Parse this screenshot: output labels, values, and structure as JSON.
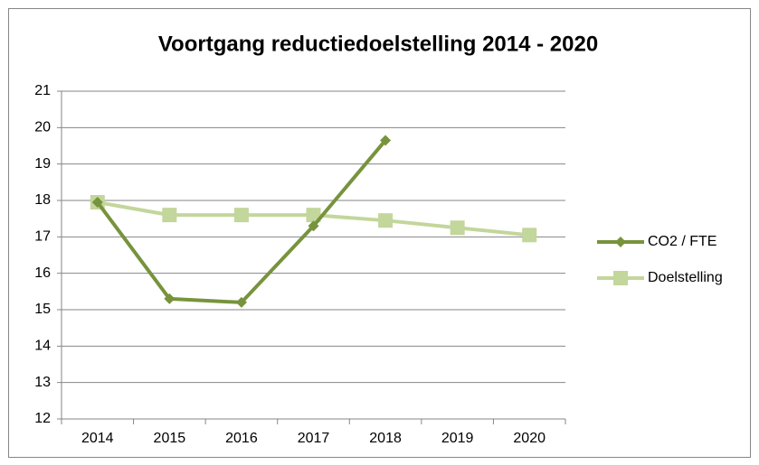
{
  "chart_data": {
    "type": "line",
    "title": "Voortgang reductiedoelstelling 2014 - 2020",
    "categories": [
      "2014",
      "2015",
      "2016",
      "2017",
      "2018",
      "2019",
      "2020"
    ],
    "series": [
      {
        "name": "CO2 / FTE",
        "color": "#77933c",
        "marker": "diamond",
        "values": [
          17.95,
          15.3,
          15.2,
          17.3,
          19.65,
          null,
          null
        ]
      },
      {
        "name": "Doelstelling",
        "color": "#c3d69b",
        "marker": "square",
        "values": [
          17.95,
          17.6,
          17.6,
          17.6,
          17.45,
          17.25,
          17.05
        ]
      }
    ],
    "ylim": [
      12,
      21
    ],
    "yticks": [
      12,
      13,
      14,
      15,
      16,
      17,
      18,
      19,
      20,
      21
    ],
    "grid": true,
    "legend": "right"
  }
}
